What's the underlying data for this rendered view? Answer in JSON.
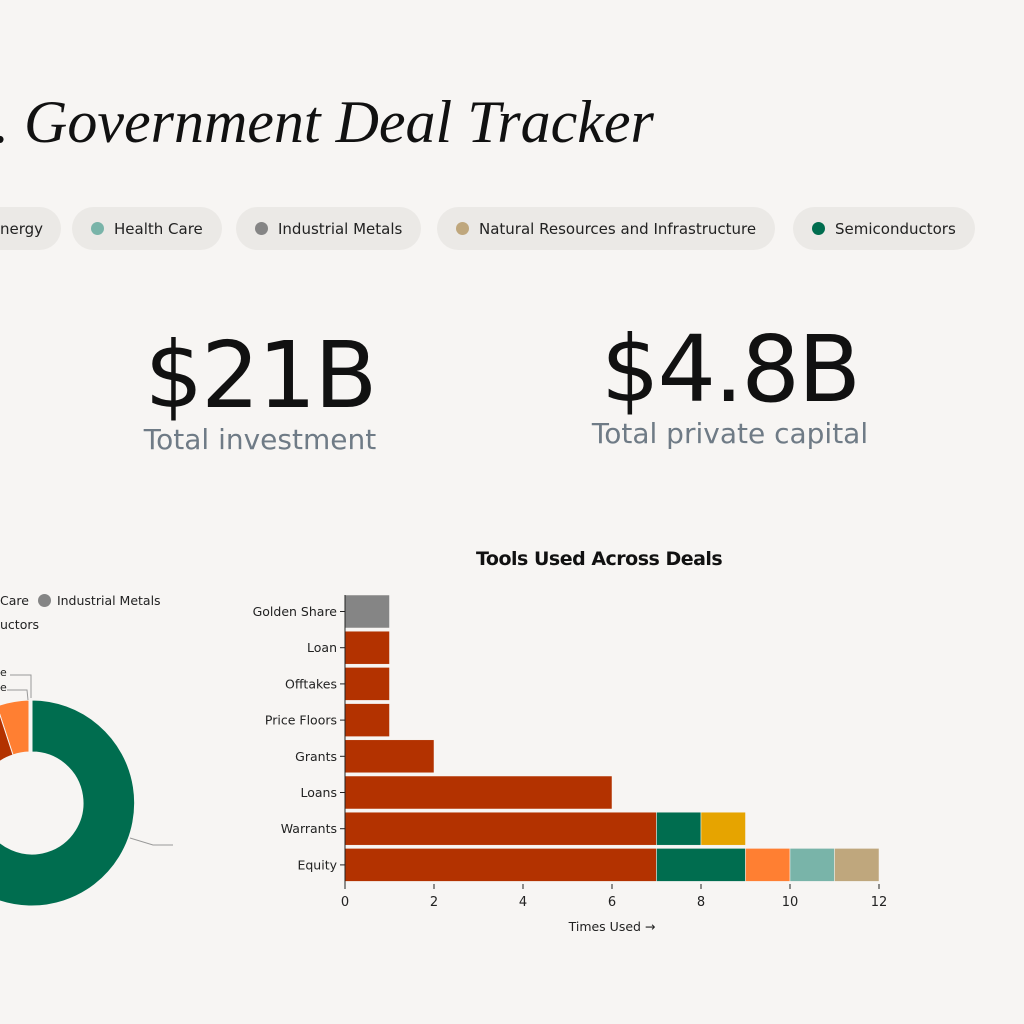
{
  "header": {
    "title": ". Government Deal Tracker"
  },
  "filters": [
    {
      "label": "nergy",
      "color": null
    },
    {
      "label": "Health Care",
      "color": "#79b4a9"
    },
    {
      "label": "Industrial Metals",
      "color": "#858585"
    },
    {
      "label": "Natural Resources and Infrastructure",
      "color": "#bfa77d"
    },
    {
      "label": "Semiconductors",
      "color": "#006d4f"
    }
  ],
  "stats": [
    {
      "value": "$21B",
      "label": "Total investment"
    },
    {
      "value": "$4.8B",
      "label": "Total private capital"
    }
  ],
  "donut": {
    "legend": [
      {
        "label": "Care"
      },
      {
        "label": "Industrial Metals",
        "color": "#858585"
      },
      {
        "label": "uctors"
      }
    ],
    "slice_labels": [
      "e",
      "e"
    ],
    "colors": {
      "semiconductors": "#006d4f",
      "orange": "#ff7f32",
      "red": "#b33200"
    }
  },
  "chart_data": {
    "type": "bar",
    "orientation": "horizontal",
    "stacked": true,
    "title": "Tools Used Across Deals",
    "xlabel": "Times Used →",
    "xlim": [
      0,
      12
    ],
    "xticks": [
      0,
      2,
      4,
      6,
      8,
      10,
      12
    ],
    "categories": [
      "Golden Share",
      "Loan",
      "Offtakes",
      "Price Floors",
      "Grants",
      "Loans",
      "Warrants",
      "Equity"
    ],
    "series": [
      {
        "color": "#858585",
        "values": [
          1,
          0,
          0,
          0,
          0,
          0,
          0,
          0
        ]
      },
      {
        "color": "#b33200",
        "values": [
          0,
          1,
          1,
          1,
          2,
          6,
          7,
          7
        ]
      },
      {
        "color": "#006d4f",
        "values": [
          0,
          0,
          0,
          0,
          0,
          0,
          1,
          2
        ]
      },
      {
        "color": "#e6a400",
        "values": [
          0,
          0,
          0,
          0,
          0,
          0,
          1,
          0
        ]
      },
      {
        "color": "#ff7f32",
        "values": [
          0,
          0,
          0,
          0,
          0,
          0,
          0,
          1
        ]
      },
      {
        "color": "#79b4a9",
        "values": [
          0,
          0,
          0,
          0,
          0,
          0,
          0,
          1
        ]
      },
      {
        "color": "#bfa77d",
        "values": [
          0,
          0,
          0,
          0,
          0,
          0,
          0,
          1
        ]
      }
    ]
  }
}
